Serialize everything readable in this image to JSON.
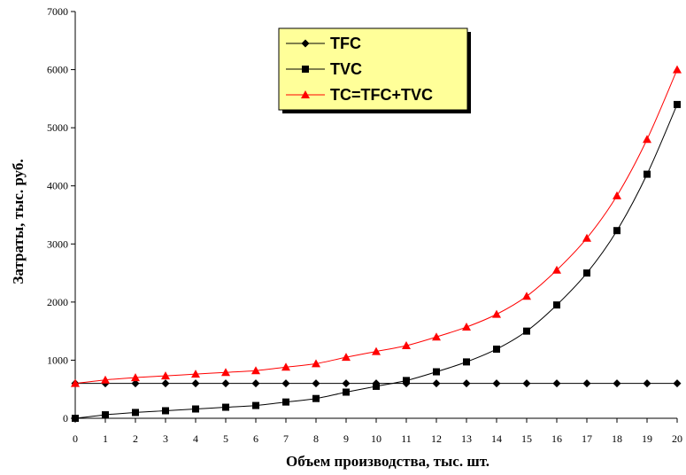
{
  "colors": {
    "background": "#ffffff",
    "plot_area": "#ffffff",
    "legend_bg": "#ffff99",
    "legend_border": "#000000",
    "axis": "#000000"
  },
  "chart_data": {
    "type": "line",
    "title": "",
    "xlabel": "Объем производства, тыс. шт.",
    "ylabel": "Затраты, тыс. руб.",
    "x": [
      0,
      1,
      2,
      3,
      4,
      5,
      6,
      7,
      8,
      9,
      10,
      11,
      12,
      13,
      14,
      15,
      16,
      17,
      18,
      19,
      20
    ],
    "xlim": [
      0,
      20
    ],
    "ylim": [
      0,
      7000
    ],
    "yticks": [
      0,
      1000,
      2000,
      3000,
      4000,
      5000,
      6000,
      7000
    ],
    "grid": false,
    "legend_position": "top-center",
    "series": [
      {
        "name": "TFC",
        "marker": "diamond",
        "color": "#000000",
        "values": [
          600,
          600,
          600,
          600,
          600,
          600,
          600,
          600,
          600,
          600,
          600,
          600,
          600,
          600,
          600,
          600,
          600,
          600,
          600,
          600,
          600
        ]
      },
      {
        "name": "TVC",
        "marker": "square",
        "color": "#000000",
        "values": [
          0,
          60,
          100,
          130,
          160,
          190,
          220,
          280,
          340,
          450,
          550,
          650,
          800,
          970,
          1190,
          1500,
          1950,
          2500,
          3230,
          4200,
          5400
        ]
      },
      {
        "name": "TC=TFC+TVC",
        "marker": "triangle",
        "color": "#ff0000",
        "values": [
          600,
          660,
          700,
          730,
          760,
          790,
          820,
          880,
          940,
          1050,
          1150,
          1250,
          1400,
          1570,
          1790,
          2100,
          2550,
          3100,
          3830,
          4800,
          6000
        ]
      }
    ]
  }
}
